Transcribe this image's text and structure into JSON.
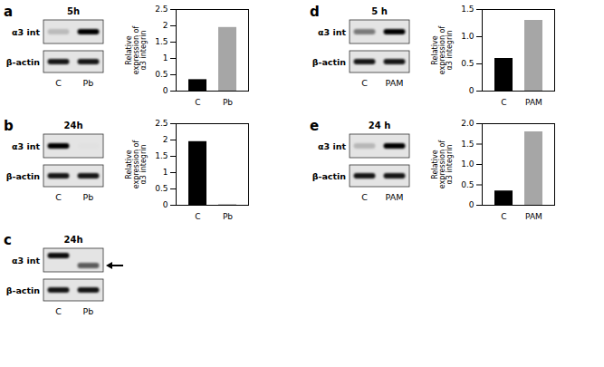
{
  "chart_data": [
    {
      "type": "bar",
      "categories": [
        "C",
        "Pb"
      ],
      "values": [
        0.35,
        1.95
      ],
      "colors": [
        "#000000",
        "#a6a6a6"
      ],
      "ylabel": "Relative expression of α3 integrin",
      "ylim": [
        0,
        2.5
      ],
      "yticks": [
        0,
        0.5,
        1,
        1.5,
        2,
        2.5
      ]
    },
    {
      "type": "bar",
      "categories": [
        "C",
        "Pb"
      ],
      "values": [
        1.95,
        0.02
      ],
      "colors": [
        "#000000",
        "#a6a6a6"
      ],
      "ylabel": "Relative expression of α3 integrin",
      "ylim": [
        0,
        2.5
      ],
      "yticks": [
        0,
        0.5,
        1,
        1.5,
        2,
        2.5
      ]
    },
    {
      "type": "bar",
      "categories": [
        "C",
        "PAM"
      ],
      "values": [
        0.6,
        1.3
      ],
      "colors": [
        "#000000",
        "#a6a6a6"
      ],
      "ylabel": "Relative expression of α3 integrin",
      "ylim": [
        0,
        1.5
      ],
      "yticks": [
        0,
        0.5,
        {
          "value": 1,
          "label": "1.0"
        },
        1.5
      ]
    },
    {
      "type": "bar",
      "categories": [
        "C",
        "PAM"
      ],
      "values": [
        0.35,
        1.8
      ],
      "colors": [
        "#000000",
        "#a6a6a6"
      ],
      "ylabel": "Relative expression of α3 integrin",
      "ylim": [
        0,
        2
      ],
      "yticks": [
        0,
        0.5,
        {
          "value": 1,
          "label": "1.0"
        },
        1.5,
        {
          "value": 2,
          "label": "2.0"
        }
      ]
    }
  ],
  "blots": [
    {
      "panel": "a",
      "time": "5h",
      "rows": [
        "α3 int",
        "β-actin"
      ],
      "lanes": [
        "C",
        "Pb"
      ]
    },
    {
      "panel": "b",
      "time": "24h",
      "rows": [
        "α3 int",
        "β-actin"
      ],
      "lanes": [
        "C",
        "Pb"
      ]
    },
    {
      "panel": "c",
      "time": "24h",
      "rows": [
        "α3 int",
        "β-actin"
      ],
      "lanes": [
        "C",
        "Pb"
      ]
    },
    {
      "panel": "d",
      "time": "5 h",
      "rows": [
        "α3 int",
        "β-actin"
      ],
      "lanes": [
        "C",
        "PAM"
      ]
    },
    {
      "panel": "e",
      "time": "24 h",
      "rows": [
        "α3 int",
        "β-actin"
      ],
      "lanes": [
        "C",
        "PAM"
      ]
    }
  ]
}
